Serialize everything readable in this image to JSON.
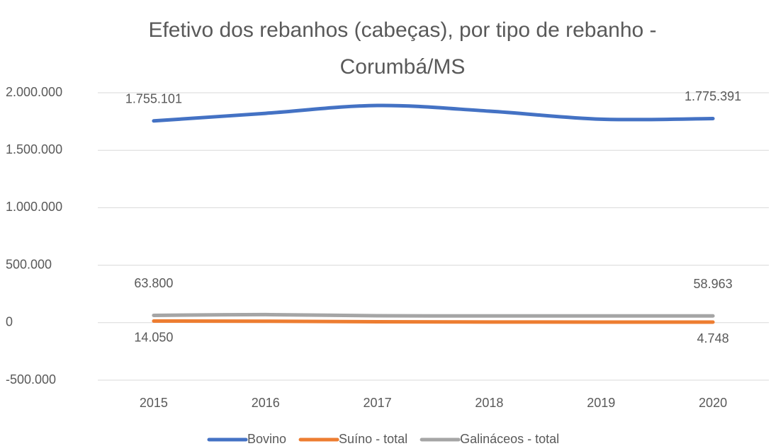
{
  "chart_data": {
    "type": "line",
    "title": [
      "Efetivo dos rebanhos (cabeças), por tipo de rebanho -",
      "Corumbá/MS"
    ],
    "categories": [
      "2015",
      "2016",
      "2017",
      "2018",
      "2019",
      "2020"
    ],
    "series": [
      {
        "name": "Bovino",
        "color": "#4472c4",
        "values": [
          1755101,
          1821000,
          1889000,
          1840000,
          1770000,
          1775391
        ],
        "value_labels": [
          "1.755.101",
          null,
          null,
          null,
          null,
          "1.775.391"
        ]
      },
      {
        "name": "Suíno - total",
        "color": "#ed7d31",
        "values": [
          14050,
          13000,
          8000,
          6000,
          5000,
          4748
        ],
        "value_labels": [
          "14.050",
          null,
          null,
          null,
          null,
          "4.748"
        ]
      },
      {
        "name": "Galináceos - total",
        "color": "#a5a5a5",
        "values": [
          63800,
          70000,
          60000,
          59000,
          59000,
          58963
        ],
        "value_labels": [
          "63.800",
          null,
          null,
          null,
          null,
          "58.963"
        ]
      }
    ],
    "ylim": [
      -500000,
      2000000
    ],
    "yticks": [
      {
        "value": -500000,
        "label": "-500.000"
      },
      0,
      {
        "value": 500000,
        "label": "500.000"
      },
      {
        "value": 1000000,
        "label": "1.000.000"
      },
      {
        "value": 1500000,
        "label": "1.500.000"
      },
      {
        "value": 2000000,
        "label": "2.000.000"
      }
    ],
    "grid": true,
    "legend": "bottom"
  }
}
